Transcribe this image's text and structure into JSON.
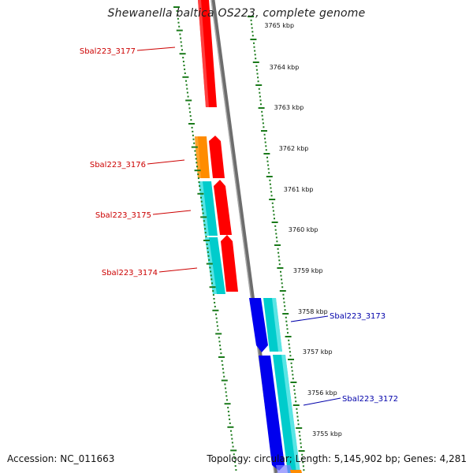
{
  "title": "Shewanella baltica OS223, complete genome",
  "footer": {
    "accession": "Accession: NC_011663",
    "summary": "Topology: circular; Length: 5,145,902 bp; Genes: 4,281"
  },
  "colors": {
    "backbone": "#888888",
    "ticks": "#1a7a1a",
    "left_labels": "#cc0000",
    "right_labels": "#0000aa",
    "red": "#ff0000",
    "orange": "#ff8c00",
    "cyan": "#00cccc",
    "blue": "#0000ee"
  },
  "ticks": [
    {
      "label": "3765 kbp",
      "value": 3765
    },
    {
      "label": "3764 kbp",
      "value": 3764
    },
    {
      "label": "3763 kbp",
      "value": 3763
    },
    {
      "label": "3762 kbp",
      "value": 3762
    },
    {
      "label": "3761 kbp",
      "value": 3761
    },
    {
      "label": "3760 kbp",
      "value": 3760
    },
    {
      "label": "3759 kbp",
      "value": 3759
    },
    {
      "label": "3758 kbp",
      "value": 3758
    },
    {
      "label": "3757 kbp",
      "value": 3757
    },
    {
      "label": "3756 kbp",
      "value": 3756
    },
    {
      "label": "3755 kbp",
      "value": 3755
    }
  ],
  "gene_labels": [
    {
      "id": "Sbal223_3177",
      "side": "left"
    },
    {
      "id": "Sbal223_3176",
      "side": "left"
    },
    {
      "id": "Sbal223_3175",
      "side": "left"
    },
    {
      "id": "Sbal223_3174",
      "side": "left"
    },
    {
      "id": "Sbal223_3173",
      "side": "right"
    },
    {
      "id": "Sbal223_3172",
      "side": "right"
    }
  ]
}
